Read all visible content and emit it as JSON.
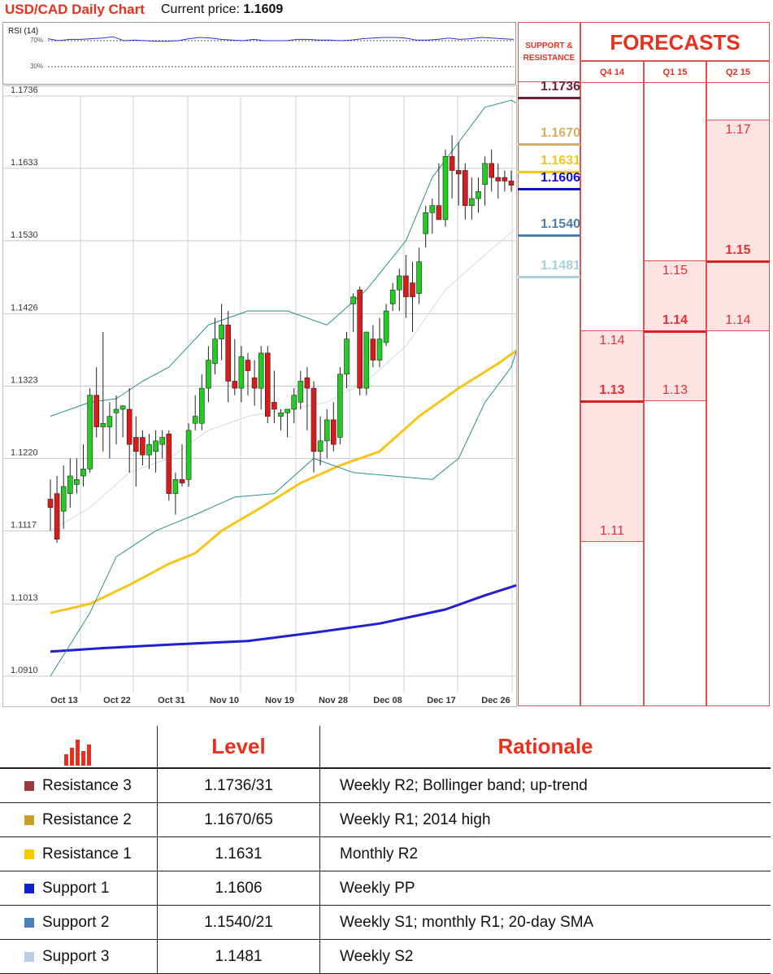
{
  "header": {
    "title": "USD/CAD Daily Chart",
    "price_label": "Current price:",
    "price_value": "1.1609"
  },
  "rsi": {
    "title": "RSI (14)",
    "level_high": "70%",
    "level_low": "30%",
    "values": [
      73,
      70,
      72,
      72,
      73,
      74,
      76,
      70,
      71,
      70,
      69,
      69,
      70,
      73,
      75,
      74,
      72,
      71,
      70,
      72,
      70,
      70,
      70,
      72,
      72,
      71,
      71,
      70,
      71,
      73,
      74,
      75,
      75,
      74,
      71,
      71,
      72,
      74,
      72,
      73,
      75,
      74,
      73,
      72
    ]
  },
  "chart_data": {
    "type": "candlestick",
    "title": "USD/CAD Daily Chart",
    "ylim": [
      1.091,
      1.1736
    ],
    "y_ticks": [
      "1.1736",
      "1.1633",
      "1.1530",
      "1.1426",
      "1.1323",
      "1.1220",
      "1.1117",
      "1.1013",
      "1.0910"
    ],
    "x_ticks": [
      "Oct 13",
      "Oct 22",
      "Oct 31",
      "Nov 10",
      "Nov 19",
      "Nov 28",
      "Dec 08",
      "Dec 17",
      "Dec 26"
    ],
    "candles": [
      {
        "o": 1.1162,
        "h": 1.119,
        "l": 1.1117,
        "c": 1.115
      },
      {
        "o": 1.117,
        "h": 1.1195,
        "l": 1.11,
        "c": 1.1105
      },
      {
        "o": 1.1145,
        "h": 1.121,
        "l": 1.112,
        "c": 1.118
      },
      {
        "o": 1.117,
        "h": 1.122,
        "l": 1.115,
        "c": 1.1195
      },
      {
        "o": 1.1183,
        "h": 1.122,
        "l": 1.117,
        "c": 1.119
      },
      {
        "o": 1.1195,
        "h": 1.124,
        "l": 1.118,
        "c": 1.1205
      },
      {
        "o": 1.1205,
        "h": 1.132,
        "l": 1.12,
        "c": 1.131
      },
      {
        "o": 1.131,
        "h": 1.135,
        "l": 1.125,
        "c": 1.1265
      },
      {
        "o": 1.1265,
        "h": 1.14,
        "l": 1.123,
        "c": 1.127
      },
      {
        "o": 1.1265,
        "h": 1.13,
        "l": 1.122,
        "c": 1.128
      },
      {
        "o": 1.1285,
        "h": 1.131,
        "l": 1.124,
        "c": 1.129
      },
      {
        "o": 1.129,
        "h": 1.1295,
        "l": 1.125,
        "c": 1.1295
      },
      {
        "o": 1.129,
        "h": 1.132,
        "l": 1.12,
        "c": 1.124
      },
      {
        "o": 1.125,
        "h": 1.128,
        "l": 1.118,
        "c": 1.123
      },
      {
        "o": 1.125,
        "h": 1.126,
        "l": 1.121,
        "c": 1.1225
      },
      {
        "o": 1.1225,
        "h": 1.1255,
        "l": 1.1205,
        "c": 1.124
      },
      {
        "o": 1.123,
        "h": 1.126,
        "l": 1.12,
        "c": 1.1245
      },
      {
        "o": 1.124,
        "h": 1.126,
        "l": 1.122,
        "c": 1.125
      },
      {
        "o": 1.1255,
        "h": 1.126,
        "l": 1.116,
        "c": 1.117
      },
      {
        "o": 1.117,
        "h": 1.12,
        "l": 1.114,
        "c": 1.119
      },
      {
        "o": 1.119,
        "h": 1.124,
        "l": 1.118,
        "c": 1.1185
      },
      {
        "o": 1.119,
        "h": 1.127,
        "l": 1.118,
        "c": 1.126
      },
      {
        "o": 1.127,
        "h": 1.131,
        "l": 1.126,
        "c": 1.128
      },
      {
        "o": 1.127,
        "h": 1.134,
        "l": 1.126,
        "c": 1.132
      },
      {
        "o": 1.132,
        "h": 1.138,
        "l": 1.13,
        "c": 1.136
      },
      {
        "o": 1.1355,
        "h": 1.142,
        "l": 1.134,
        "c": 1.139
      },
      {
        "o": 1.139,
        "h": 1.144,
        "l": 1.136,
        "c": 1.141
      },
      {
        "o": 1.141,
        "h": 1.143,
        "l": 1.13,
        "c": 1.133
      },
      {
        "o": 1.133,
        "h": 1.139,
        "l": 1.131,
        "c": 1.132
      },
      {
        "o": 1.132,
        "h": 1.138,
        "l": 1.13,
        "c": 1.1365
      },
      {
        "o": 1.136,
        "h": 1.137,
        "l": 1.131,
        "c": 1.1345
      },
      {
        "o": 1.1335,
        "h": 1.136,
        "l": 1.1295,
        "c": 1.132
      },
      {
        "o": 1.132,
        "h": 1.138,
        "l": 1.129,
        "c": 1.137
      },
      {
        "o": 1.137,
        "h": 1.138,
        "l": 1.127,
        "c": 1.128
      },
      {
        "o": 1.13,
        "h": 1.1345,
        "l": 1.127,
        "c": 1.129
      },
      {
        "o": 1.128,
        "h": 1.129,
        "l": 1.126,
        "c": 1.1285
      },
      {
        "o": 1.1285,
        "h": 1.129,
        "l": 1.125,
        "c": 1.129
      },
      {
        "o": 1.129,
        "h": 1.132,
        "l": 1.127,
        "c": 1.131
      },
      {
        "o": 1.13,
        "h": 1.1345,
        "l": 1.129,
        "c": 1.133
      },
      {
        "o": 1.1335,
        "h": 1.135,
        "l": 1.126,
        "c": 1.132
      },
      {
        "o": 1.132,
        "h": 1.133,
        "l": 1.12,
        "c": 1.123
      },
      {
        "o": 1.123,
        "h": 1.128,
        "l": 1.121,
        "c": 1.1245
      },
      {
        "o": 1.1245,
        "h": 1.129,
        "l": 1.122,
        "c": 1.1275
      },
      {
        "o": 1.1275,
        "h": 1.13,
        "l": 1.123,
        "c": 1.124
      },
      {
        "o": 1.125,
        "h": 1.135,
        "l": 1.124,
        "c": 1.134
      },
      {
        "o": 1.134,
        "h": 1.14,
        "l": 1.132,
        "c": 1.139
      },
      {
        "o": 1.144,
        "h": 1.1455,
        "l": 1.14,
        "c": 1.145
      },
      {
        "o": 1.146,
        "h": 1.1465,
        "l": 1.131,
        "c": 1.132
      },
      {
        "o": 1.132,
        "h": 1.14,
        "l": 1.131,
        "c": 1.14
      },
      {
        "o": 1.139,
        "h": 1.141,
        "l": 1.135,
        "c": 1.136
      },
      {
        "o": 1.136,
        "h": 1.142,
        "l": 1.135,
        "c": 1.139
      },
      {
        "o": 1.1385,
        "h": 1.144,
        "l": 1.138,
        "c": 1.143
      },
      {
        "o": 1.144,
        "h": 1.147,
        "l": 1.143,
        "c": 1.146
      },
      {
        "o": 1.146,
        "h": 1.149,
        "l": 1.143,
        "c": 1.148
      },
      {
        "o": 1.148,
        "h": 1.151,
        "l": 1.142,
        "c": 1.145
      },
      {
        "o": 1.147,
        "h": 1.15,
        "l": 1.14,
        "c": 1.145
      },
      {
        "o": 1.1455,
        "h": 1.152,
        "l": 1.144,
        "c": 1.15
      },
      {
        "o": 1.154,
        "h": 1.158,
        "l": 1.152,
        "c": 1.157
      },
      {
        "o": 1.157,
        "h": 1.159,
        "l": 1.154,
        "c": 1.158
      },
      {
        "o": 1.158,
        "h": 1.164,
        "l": 1.156,
        "c": 1.156
      },
      {
        "o": 1.156,
        "h": 1.166,
        "l": 1.155,
        "c": 1.165
      },
      {
        "o": 1.165,
        "h": 1.168,
        "l": 1.159,
        "c": 1.163
      },
      {
        "o": 1.163,
        "h": 1.167,
        "l": 1.158,
        "c": 1.1625
      },
      {
        "o": 1.163,
        "h": 1.164,
        "l": 1.156,
        "c": 1.158
      },
      {
        "o": 1.158,
        "h": 1.162,
        "l": 1.156,
        "c": 1.159
      },
      {
        "o": 1.159,
        "h": 1.162,
        "l": 1.157,
        "c": 1.16
      },
      {
        "o": 1.161,
        "h": 1.165,
        "l": 1.158,
        "c": 1.164
      },
      {
        "o": 1.164,
        "h": 1.166,
        "l": 1.16,
        "c": 1.162
      },
      {
        "o": 1.162,
        "h": 1.164,
        "l": 1.159,
        "c": 1.1615
      },
      {
        "o": 1.162,
        "h": 1.163,
        "l": 1.16,
        "c": 1.1615
      },
      {
        "o": 1.1615,
        "h": 1.163,
        "l": 1.16,
        "c": 1.1609
      }
    ],
    "overlays": [
      {
        "color": "#f5c518",
        "width": 3,
        "points": [
          [
            0,
            1.1
          ],
          [
            6,
            1.1013
          ],
          [
            12,
            1.104
          ],
          [
            18,
            1.107
          ],
          [
            22,
            1.1085
          ],
          [
            26,
            1.1117
          ],
          [
            32,
            1.115
          ],
          [
            38,
            1.1185
          ],
          [
            44,
            1.121
          ],
          [
            50,
            1.123
          ],
          [
            56,
            1.128
          ],
          [
            62,
            1.132
          ],
          [
            68,
            1.1355
          ],
          [
            71,
            1.1375
          ]
        ]
      },
      {
        "color": "#2020d0",
        "width": 3,
        "points": [
          [
            0,
            1.0945
          ],
          [
            8,
            1.095
          ],
          [
            18,
            1.0955
          ],
          [
            30,
            1.096
          ],
          [
            40,
            1.0972
          ],
          [
            50,
            1.0985
          ],
          [
            60,
            1.1005
          ],
          [
            66,
            1.1025
          ],
          [
            71,
            1.104
          ]
        ]
      },
      {
        "color": "#2a8f8f",
        "width": 1,
        "points": [
          [
            0,
            1.128
          ],
          [
            6,
            1.13
          ],
          [
            10,
            1.1305
          ],
          [
            14,
            1.133
          ],
          [
            18,
            1.135
          ],
          [
            24,
            1.141
          ],
          [
            30,
            1.143
          ],
          [
            36,
            1.143
          ],
          [
            42,
            1.141
          ],
          [
            48,
            1.146
          ],
          [
            54,
            1.153
          ],
          [
            58,
            1.162
          ],
          [
            62,
            1.167
          ],
          [
            66,
            1.172
          ],
          [
            70,
            1.173
          ],
          [
            71,
            1.1725
          ]
        ]
      },
      {
        "color": "#2a8f8f",
        "width": 1,
        "points": [
          [
            0,
            1.091
          ],
          [
            6,
            1.1
          ],
          [
            10,
            1.108
          ],
          [
            16,
            1.1117
          ],
          [
            22,
            1.114
          ],
          [
            28,
            1.1165
          ],
          [
            34,
            1.117
          ],
          [
            40,
            1.122
          ],
          [
            46,
            1.12
          ],
          [
            52,
            1.1195
          ],
          [
            58,
            1.119
          ],
          [
            62,
            1.122
          ],
          [
            66,
            1.13
          ],
          [
            70,
            1.135
          ],
          [
            71,
            1.138
          ]
        ]
      },
      {
        "color": "#d8d8d8",
        "width": 1,
        "points": [
          [
            0,
            1.1117
          ],
          [
            6,
            1.115
          ],
          [
            12,
            1.12
          ],
          [
            18,
            1.122
          ],
          [
            24,
            1.126
          ],
          [
            30,
            1.128
          ],
          [
            36,
            1.129
          ],
          [
            42,
            1.13
          ],
          [
            48,
            1.133
          ],
          [
            54,
            1.138
          ],
          [
            60,
            1.146
          ],
          [
            66,
            1.151
          ],
          [
            71,
            1.155
          ]
        ]
      }
    ]
  },
  "support_resistance": {
    "header_line1": "SUPPORT &",
    "header_line2": "RESISTANCE",
    "levels": [
      {
        "label": "1.1736",
        "value": 1.1736,
        "color": "#6b2040"
      },
      {
        "label": "1.1670",
        "value": 1.167,
        "color": "#d4b060"
      },
      {
        "label": "1.1631",
        "value": 1.1631,
        "color": "#f5c518"
      },
      {
        "label": "1.1606",
        "value": 1.1606,
        "color": "#1010c8"
      },
      {
        "label": "1.1540",
        "value": 1.154,
        "color": "#4a7fa8"
      },
      {
        "label": "1.1481",
        "value": 1.1481,
        "color": "#a8d0d8"
      }
    ]
  },
  "forecasts": {
    "title": "FORECASTS",
    "columns": [
      {
        "label": "Q4 14",
        "low": "1.11",
        "mid": "1.13",
        "high": "1.14"
      },
      {
        "label": "Q1 15",
        "low": "1.13",
        "mid": "1.14",
        "high": "1.15"
      },
      {
        "label": "Q2 15",
        "low": "1.14",
        "mid": "1.15",
        "high": "1.17"
      }
    ]
  },
  "table": {
    "col_level": "Level",
    "col_rationale": "Rationale",
    "rows": [
      {
        "name": "Resistance 3",
        "level": "1.1736/31",
        "rationale": "Weekly R2; Bollinger band; up-trend",
        "color": "#9b3a3a"
      },
      {
        "name": "Resistance 2",
        "level": "1.1670/65",
        "rationale": "Weekly R1; 2014 high",
        "color": "#c8a020"
      },
      {
        "name": "Resistance 1",
        "level": "1.1631",
        "rationale": "Monthly R2",
        "color": "#f5c800"
      },
      {
        "name": "Support 1",
        "level": "1.1606",
        "rationale": "Weekly PP",
        "color": "#0a22c8"
      },
      {
        "name": "Support 2",
        "level": "1.1540/21",
        "rationale": "Weekly S1; monthly R1; 20-day SMA",
        "color": "#4a7fb8"
      },
      {
        "name": "Support 3",
        "level": "1.1481",
        "rationale": "Weekly S2",
        "color": "#b8cde8"
      }
    ]
  }
}
